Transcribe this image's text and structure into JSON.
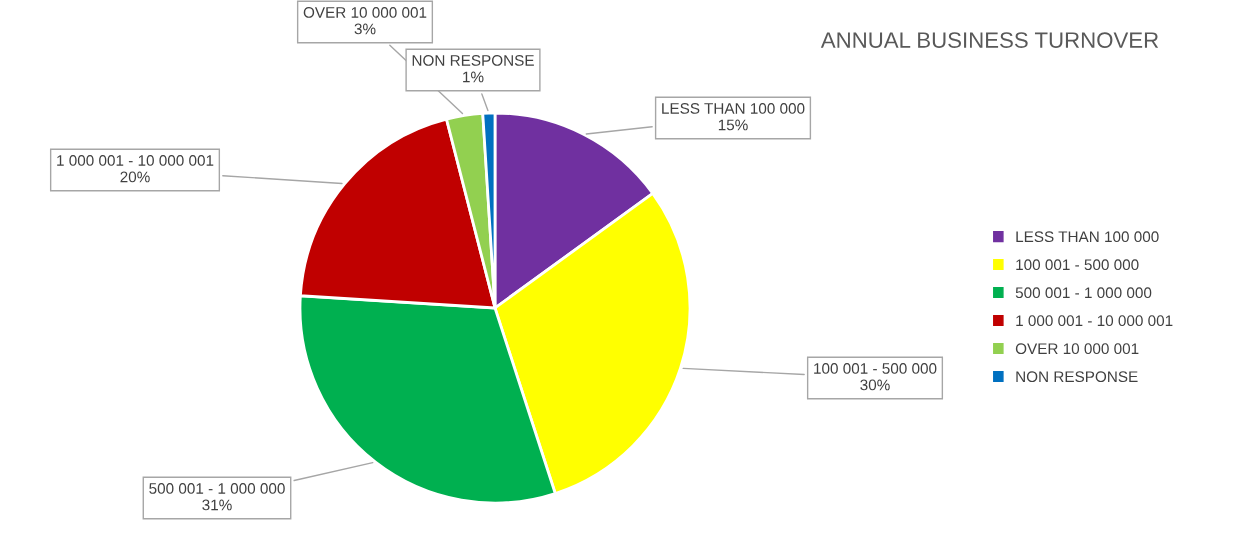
{
  "chart_data": {
    "type": "pie",
    "title": "ANNUAL BUSINESS TURNOVER",
    "categories": [
      "LESS THAN 100 000",
      "100 001 - 500 000",
      "500 001 - 1 000 000",
      "1 000 001 - 10 000 001",
      "OVER 10 000 001",
      "NON RESPONSE"
    ],
    "values": [
      15,
      30,
      31,
      20,
      3,
      1
    ],
    "value_labels": [
      "15%",
      "30%",
      "31%",
      "20%",
      "3%",
      "1%"
    ],
    "colors": [
      "#7030a0",
      "#ffff00",
      "#00b050",
      "#c00000",
      "#92d050",
      "#0070c0"
    ],
    "legend": "right"
  }
}
